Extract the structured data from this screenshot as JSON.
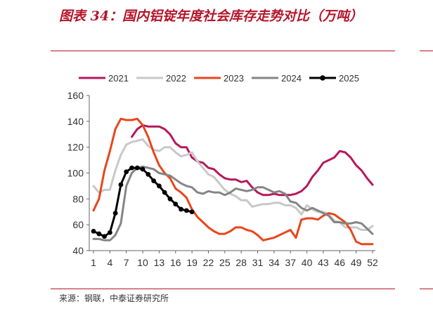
{
  "title": "图表 34：国内铝锭年度社会库存走势对比（万吨）",
  "source": "来源：钢联，中泰证券研究所",
  "chart_data": {
    "type": "line",
    "x_ticks": [
      1,
      4,
      7,
      10,
      13,
      16,
      19,
      22,
      25,
      28,
      31,
      34,
      37,
      40,
      43,
      46,
      49,
      52
    ],
    "xlim": [
      1,
      52
    ],
    "y_ticks": [
      40,
      60,
      80,
      100,
      120,
      140,
      160
    ],
    "ylim": [
      40,
      160
    ],
    "legend_position": "top",
    "series": [
      {
        "name": "2021",
        "color": "#b5195b",
        "marker": false,
        "points": [
          [
            8,
            128
          ],
          [
            9,
            134
          ],
          [
            10,
            137
          ],
          [
            11,
            136
          ],
          [
            12,
            136
          ],
          [
            13,
            136
          ],
          [
            14,
            134
          ],
          [
            15,
            130
          ],
          [
            16,
            123
          ],
          [
            17,
            120
          ],
          [
            18,
            120
          ],
          [
            19,
            112
          ],
          [
            20,
            109
          ],
          [
            21,
            108
          ],
          [
            22,
            104
          ],
          [
            23,
            103
          ],
          [
            24,
            99
          ],
          [
            25,
            96
          ],
          [
            26,
            95
          ],
          [
            27,
            95
          ],
          [
            28,
            93
          ],
          [
            29,
            94
          ],
          [
            30,
            89
          ],
          [
            31,
            85
          ],
          [
            32,
            83
          ],
          [
            33,
            83
          ],
          [
            34,
            84
          ],
          [
            35,
            83
          ],
          [
            36,
            83
          ],
          [
            37,
            83
          ],
          [
            38,
            84
          ],
          [
            39,
            86
          ],
          [
            40,
            90
          ],
          [
            41,
            97
          ],
          [
            42,
            102
          ],
          [
            43,
            108
          ],
          [
            44,
            110
          ],
          [
            45,
            112
          ],
          [
            46,
            117
          ],
          [
            47,
            116
          ],
          [
            48,
            112
          ],
          [
            49,
            106
          ],
          [
            50,
            102
          ],
          [
            51,
            96
          ],
          [
            52,
            91
          ]
        ]
      },
      {
        "name": "2022",
        "color": "#c8c8c8",
        "marker": false,
        "points": [
          [
            1,
            90
          ],
          [
            2,
            85
          ],
          [
            3,
            87
          ],
          [
            4,
            87
          ],
          [
            5,
            102
          ],
          [
            6,
            114
          ],
          [
            7,
            122
          ],
          [
            8,
            124
          ],
          [
            9,
            125
          ],
          [
            10,
            126
          ],
          [
            11,
            121
          ],
          [
            12,
            118
          ],
          [
            13,
            117
          ],
          [
            14,
            120
          ],
          [
            15,
            120
          ],
          [
            16,
            116
          ],
          [
            17,
            113
          ],
          [
            18,
            114
          ],
          [
            19,
            116
          ],
          [
            20,
            109
          ],
          [
            21,
            104
          ],
          [
            22,
            99
          ],
          [
            23,
            97
          ],
          [
            24,
            92
          ],
          [
            25,
            87
          ],
          [
            26,
            84
          ],
          [
            27,
            82
          ],
          [
            28,
            79
          ],
          [
            29,
            79
          ],
          [
            30,
            74
          ],
          [
            31,
            75
          ],
          [
            32,
            76
          ],
          [
            33,
            76
          ],
          [
            34,
            77
          ],
          [
            35,
            77
          ],
          [
            36,
            75
          ],
          [
            37,
            75
          ],
          [
            38,
            73
          ],
          [
            39,
            68
          ],
          [
            40,
            75
          ],
          [
            41,
            72
          ],
          [
            42,
            70
          ],
          [
            43,
            70
          ],
          [
            44,
            68
          ],
          [
            45,
            63
          ],
          [
            46,
            62
          ],
          [
            47,
            58
          ],
          [
            48,
            58
          ],
          [
            49,
            58
          ],
          [
            50,
            56
          ],
          [
            51,
            56
          ],
          [
            52,
            59
          ]
        ]
      },
      {
        "name": "2023",
        "color": "#e8461b",
        "marker": false,
        "points": [
          [
            1,
            71
          ],
          [
            2,
            80
          ],
          [
            3,
            102
          ],
          [
            4,
            117
          ],
          [
            5,
            134
          ],
          [
            6,
            142
          ],
          [
            7,
            141
          ],
          [
            8,
            141
          ],
          [
            9,
            142
          ],
          [
            10,
            137
          ],
          [
            11,
            128
          ],
          [
            12,
            116
          ],
          [
            13,
            106
          ],
          [
            14,
            100
          ],
          [
            15,
            96
          ],
          [
            16,
            88
          ],
          [
            17,
            85
          ],
          [
            18,
            81
          ],
          [
            19,
            72
          ],
          [
            20,
            66
          ],
          [
            21,
            62
          ],
          [
            22,
            58
          ],
          [
            23,
            55
          ],
          [
            24,
            53
          ],
          [
            25,
            53
          ],
          [
            26,
            55
          ],
          [
            27,
            58
          ],
          [
            28,
            58
          ],
          [
            29,
            56
          ],
          [
            30,
            55
          ],
          [
            31,
            52
          ],
          [
            32,
            48
          ],
          [
            33,
            49
          ],
          [
            34,
            50
          ],
          [
            35,
            52
          ],
          [
            36,
            54
          ],
          [
            37,
            56
          ],
          [
            38,
            50
          ],
          [
            39,
            64
          ],
          [
            40,
            65
          ],
          [
            41,
            65
          ],
          [
            42,
            64
          ],
          [
            43,
            67
          ],
          [
            44,
            69
          ],
          [
            45,
            68
          ],
          [
            46,
            65
          ],
          [
            47,
            62
          ],
          [
            48,
            56
          ],
          [
            49,
            47
          ],
          [
            50,
            45
          ],
          [
            51,
            45
          ],
          [
            52,
            45
          ]
        ]
      },
      {
        "name": "2024",
        "color": "#858585",
        "marker": false,
        "points": [
          [
            1,
            49
          ],
          [
            2,
            49
          ],
          [
            3,
            48
          ],
          [
            4,
            48
          ],
          [
            5,
            52
          ],
          [
            6,
            61
          ],
          [
            7,
            90
          ],
          [
            8,
            100
          ],
          [
            9,
            104
          ],
          [
            10,
            105
          ],
          [
            11,
            104
          ],
          [
            12,
            103
          ],
          [
            13,
            100
          ],
          [
            14,
            99
          ],
          [
            15,
            98
          ],
          [
            16,
            95
          ],
          [
            17,
            92
          ],
          [
            18,
            90
          ],
          [
            19,
            89
          ],
          [
            20,
            85
          ],
          [
            21,
            84
          ],
          [
            22,
            86
          ],
          [
            23,
            85
          ],
          [
            24,
            85
          ],
          [
            25,
            83
          ],
          [
            26,
            85
          ],
          [
            27,
            88
          ],
          [
            28,
            87
          ],
          [
            29,
            86
          ],
          [
            30,
            87
          ],
          [
            31,
            89
          ],
          [
            32,
            89
          ],
          [
            33,
            87
          ],
          [
            34,
            85
          ],
          [
            35,
            86
          ],
          [
            36,
            84
          ],
          [
            37,
            78
          ],
          [
            38,
            77
          ],
          [
            39,
            73
          ],
          [
            40,
            71
          ],
          [
            41,
            73
          ],
          [
            42,
            71
          ],
          [
            43,
            69
          ],
          [
            44,
            67
          ],
          [
            45,
            62
          ],
          [
            46,
            62
          ],
          [
            47,
            61
          ],
          [
            48,
            61
          ],
          [
            49,
            62
          ],
          [
            50,
            61
          ],
          [
            51,
            57
          ],
          [
            52,
            53
          ]
        ]
      },
      {
        "name": "2025",
        "color": "#000000",
        "marker": true,
        "points": [
          [
            1,
            55
          ],
          [
            2,
            53
          ],
          [
            3,
            51
          ],
          [
            4,
            54
          ],
          [
            5,
            69
          ],
          [
            6,
            91
          ],
          [
            7,
            101
          ],
          [
            8,
            104
          ],
          [
            9,
            104
          ],
          [
            10,
            103
          ],
          [
            11,
            99
          ],
          [
            12,
            94
          ],
          [
            13,
            90
          ],
          [
            14,
            85
          ],
          [
            15,
            80
          ],
          [
            16,
            76
          ],
          [
            17,
            72
          ],
          [
            18,
            71
          ],
          [
            19,
            70
          ]
        ]
      }
    ]
  }
}
